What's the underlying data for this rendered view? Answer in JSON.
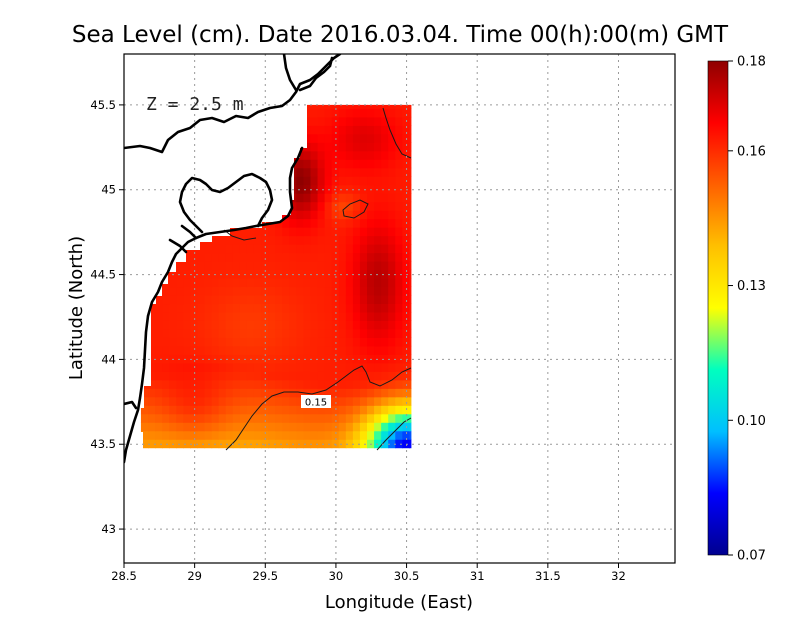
{
  "chart_data": {
    "type": "heatmap",
    "title": "Sea Level (cm). Date 2016.03.04. Time 00(h):00(m) GMT",
    "xlabel": "Longitude (East)",
    "ylabel": "Latitude (North)",
    "annotation": "Z = 2.5 m",
    "xlim": [
      28.5,
      32.4
    ],
    "ylim": [
      42.8,
      45.8
    ],
    "xticks": [
      "28.5",
      "29",
      "29.5",
      "30",
      "30.5",
      "31",
      "31.5",
      "32"
    ],
    "yticks": [
      "43",
      "43.5",
      "44",
      "44.5",
      "45",
      "45.5"
    ],
    "grid": true,
    "colorbar": {
      "min": 0.07,
      "max": 0.18,
      "ticks": [
        "0.07",
        "0.10",
        "0.13",
        "0.16",
        "0.18"
      ],
      "colormap": [
        "#00008f",
        "#0000ff",
        "#00bfff",
        "#00ffbf",
        "#ffff00",
        "#ffc000",
        "#ff6000",
        "#ff0000",
        "#8f0000"
      ]
    },
    "contour_label": "0.15",
    "contour_levels": [
      0.11,
      0.15,
      0.17
    ],
    "field_extent": {
      "lon": [
        28.62,
        30.53
      ],
      "lat": [
        43.48,
        45.5
      ]
    },
    "features": {
      "background_level": 0.162,
      "red_core": {
        "lon": 30.3,
        "lat": 44.45,
        "value": 0.175
      },
      "northwest_max": {
        "lon": 29.75,
        "lat": 45.05,
        "value": 0.18
      },
      "southeast_min": {
        "lon": 30.5,
        "lat": 43.5,
        "value": 0.07
      },
      "gradient_boundary_lat": 43.9
    }
  }
}
